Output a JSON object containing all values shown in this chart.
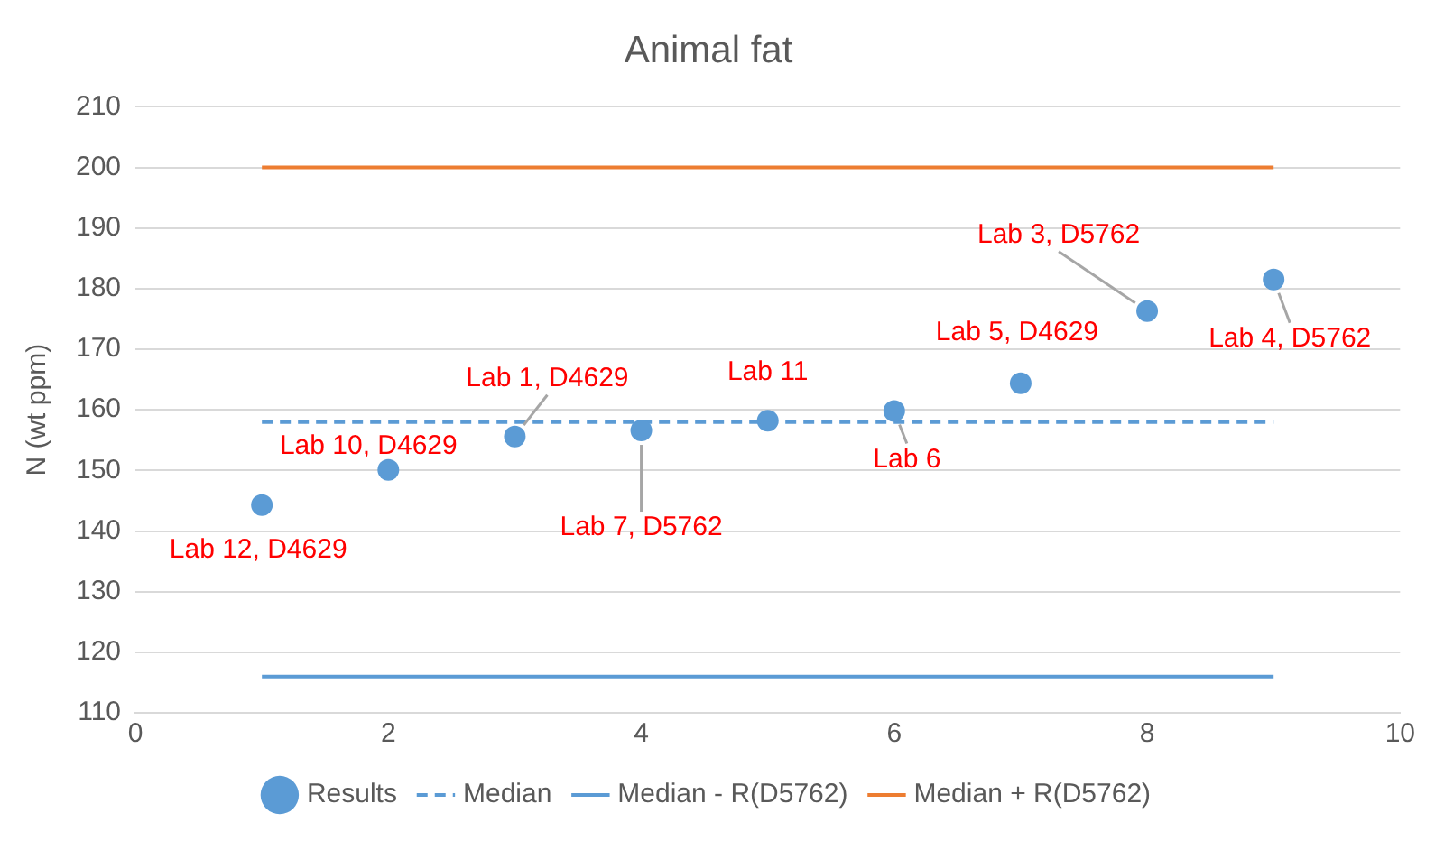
{
  "chart_data": {
    "type": "scatter",
    "title": "Animal fat",
    "ylabel": "N (wt ppm)",
    "xlim": [
      0,
      10
    ],
    "xticks": [
      0,
      2,
      4,
      6,
      8,
      10
    ],
    "ylim": [
      110,
      210
    ],
    "yticks": [
      110,
      120,
      130,
      140,
      150,
      160,
      170,
      180,
      190,
      200,
      210
    ],
    "grid": "y",
    "legend": "bottom",
    "series": [
      {
        "name": "Results",
        "type": "scatter",
        "marker": "circle",
        "color": "#5b9bd5",
        "x": [
          1,
          2,
          3,
          4,
          5,
          6,
          7,
          8,
          9
        ],
        "values": [
          144.3,
          150.1,
          155.6,
          156.6,
          158.2,
          159.8,
          164.4,
          176.3,
          181.5
        ]
      },
      {
        "name": "Median",
        "type": "line",
        "marker": "none",
        "line_style": "dashed",
        "color": "#5b9bd5",
        "x": [
          1,
          9
        ],
        "values": [
          158,
          158
        ]
      },
      {
        "name": "Median - R(D5762)",
        "type": "line",
        "marker": "none",
        "line_style": "solid",
        "color": "#5b9bd5",
        "x": [
          1,
          9
        ],
        "values": [
          116,
          116
        ]
      },
      {
        "name": "Median + R(D5762)",
        "type": "line",
        "marker": "none",
        "line_style": "solid",
        "color": "#ed7d31",
        "x": [
          1,
          9
        ],
        "values": [
          200,
          200
        ]
      }
    ],
    "annotations": [
      {
        "text": "Lab 12, D4629",
        "x": 1,
        "y": 144.3
      },
      {
        "text": "Lab 10, D4629",
        "x": 2,
        "y": 150.1
      },
      {
        "text": "Lab 1, D4629",
        "x": 3,
        "y": 155.6
      },
      {
        "text": "Lab 7, D5762",
        "x": 4,
        "y": 156.6
      },
      {
        "text": "Lab 11",
        "x": 5,
        "y": 158.2
      },
      {
        "text": "Lab 6",
        "x": 6,
        "y": 159.8
      },
      {
        "text": "Lab 5, D4629",
        "x": 7,
        "y": 164.4
      },
      {
        "text": "Lab 3, D5762",
        "x": 8,
        "y": 176.3
      },
      {
        "text": "Lab 4, D5762",
        "x": 9,
        "y": 181.5
      }
    ]
  }
}
